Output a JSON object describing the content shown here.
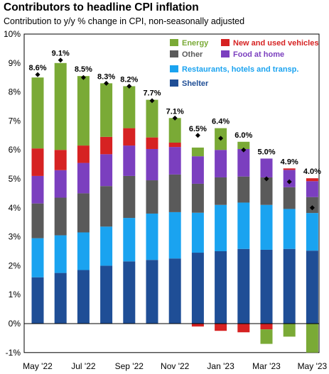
{
  "title": "Contributors to headline CPI inflation",
  "subtitle": "Contribution to y/y % change in CPI, non-seasonally adjusted",
  "chart_data": {
    "type": "bar",
    "stacked": true,
    "title": "Contributors to headline CPI inflation",
    "subtitle": "Contribution to y/y % change in CPI, non-seasonally adjusted",
    "ylim": [
      -1,
      10
    ],
    "yticks": [
      "-1%",
      "0%",
      "1%",
      "2%",
      "3%",
      "4%",
      "5%",
      "6%",
      "7%",
      "8%",
      "9%",
      "10%"
    ],
    "categories": [
      "May '22",
      "Jun '22",
      "Jul '22",
      "Aug '22",
      "Sep '22",
      "Oct '22",
      "Nov '22",
      "Dec '22",
      "Jan '23",
      "Feb '23",
      "Mar '23",
      "Apr '23",
      "May '23"
    ],
    "xtick_labels": [
      "May '22",
      "",
      "Jul '22",
      "",
      "Sep '22",
      "",
      "Nov '22",
      "",
      "Jan '23",
      "",
      "Mar '23",
      "",
      "May '23"
    ],
    "series": [
      {
        "name": "Shelter",
        "color": "#1f4e96",
        "values": [
          1.6,
          1.75,
          1.85,
          2.0,
          2.15,
          2.2,
          2.25,
          2.45,
          2.5,
          2.58,
          2.55,
          2.58,
          2.52
        ]
      },
      {
        "name": "Restaurants, hotels and transp.",
        "color": "#1aa3f0",
        "values": [
          1.35,
          1.3,
          1.3,
          1.35,
          1.5,
          1.6,
          1.6,
          1.38,
          1.6,
          1.6,
          1.55,
          1.38,
          1.3
        ]
      },
      {
        "name": "Other",
        "color": "#5a5a5a",
        "values": [
          1.2,
          1.3,
          1.35,
          1.4,
          1.45,
          1.15,
          1.3,
          1.0,
          0.95,
          0.9,
          0.95,
          0.75,
          0.55
        ]
      },
      {
        "name": "Food at home",
        "color": "#7b3fbf",
        "values": [
          0.95,
          0.95,
          1.05,
          1.1,
          1.05,
          1.08,
          0.95,
          0.95,
          0.95,
          0.95,
          0.65,
          0.6,
          0.55
        ]
      },
      {
        "name": "New and used vehicles",
        "color": "#d62222",
        "values": [
          0.95,
          0.7,
          0.6,
          0.6,
          0.6,
          0.4,
          0.15,
          -0.1,
          -0.25,
          -0.3,
          -0.2,
          0.05,
          0.1
        ]
      },
      {
        "name": "Energy",
        "color": "#7aaa36",
        "values": [
          2.45,
          3.0,
          2.4,
          1.85,
          1.45,
          1.3,
          0.85,
          0.3,
          0.75,
          0.25,
          -0.5,
          -0.45,
          -1.0
        ]
      }
    ],
    "headline": [
      8.6,
      9.1,
      8.5,
      8.3,
      8.2,
      7.7,
      7.1,
      6.5,
      6.4,
      6.0,
      5.0,
      4.9,
      4.0
    ],
    "bar_labels": [
      "8.6%",
      "9.1%",
      "8.5%",
      "8.3%",
      "8.2%",
      "7.7%",
      "7.1%",
      "6.5%",
      "6.4%",
      "6.0%",
      "5.0%",
      "4.9%",
      "4.0%"
    ],
    "legend": [
      "Energy",
      "New and used vehicles",
      "Other",
      "Food at home",
      "Restaurants, hotels and transp.",
      "Shelter"
    ],
    "legend_placement": "top-right",
    "grid": false
  }
}
